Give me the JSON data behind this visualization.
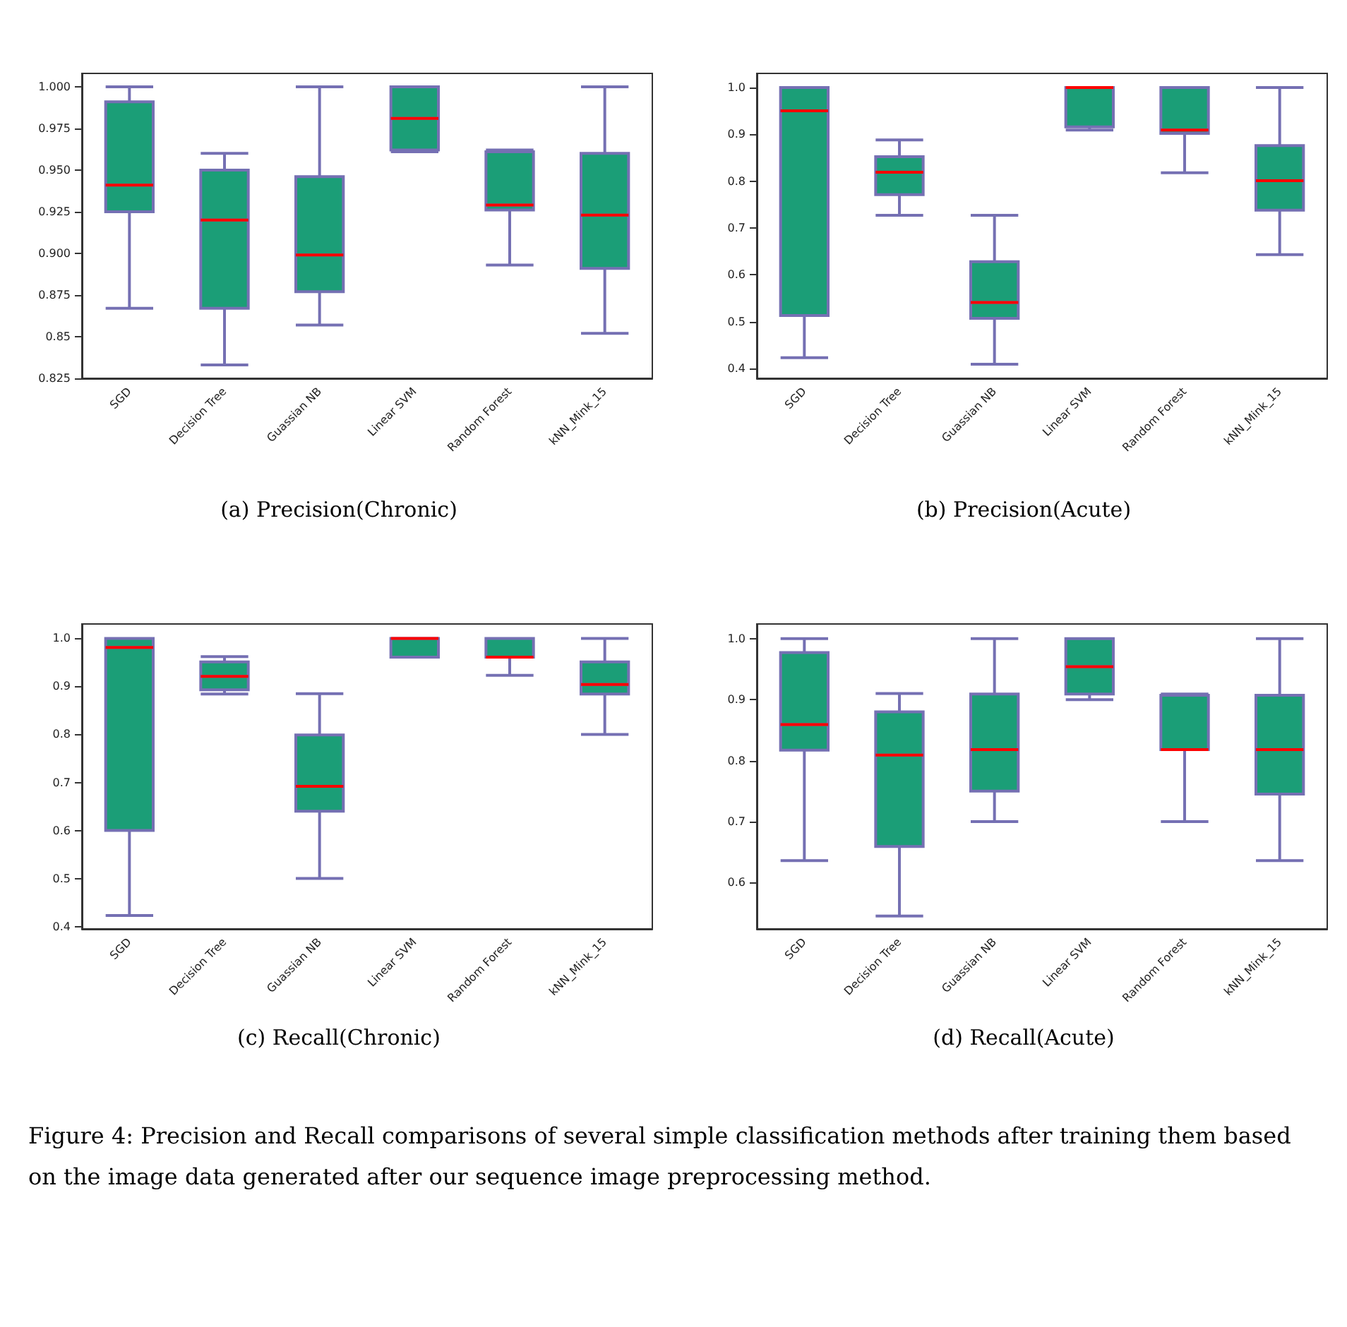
{
  "chart_data": [
    {
      "type": "box",
      "categories": [
        "SGD",
        "Decision Tree",
        "Guassian NB",
        "Linear SVM",
        "Random Forest",
        "kNN_Mink_15"
      ],
      "color": "#1b9e77",
      "ylim": [
        0.825,
        1.008
      ],
      "yticks": [
        0.825,
        0.85,
        {
          "value": 0.875,
          "label": "0.875"
        },
        {
          "value": 0.9,
          "label": "0.900"
        },
        0.925,
        {
          "value": 0.95,
          "label": "0.950"
        },
        0.975,
        {
          "value": 1.0,
          "label": "1.000"
        }
      ],
      "boxes": [
        {
          "low": 0.867,
          "q1": 0.925,
          "median": 0.941,
          "q3": 0.991,
          "high": 1.0
        },
        {
          "low": 0.833,
          "q1": 0.867,
          "median": 0.92,
          "q3": 0.95,
          "high": 0.96
        },
        {
          "low": 0.857,
          "q1": 0.877,
          "median": 0.899,
          "q3": 0.946,
          "high": 1.0
        },
        {
          "low": 0.961,
          "q1": 0.962,
          "median": 0.981,
          "q3": 1.0,
          "high": 1.0
        },
        {
          "low": 0.893,
          "q1": 0.926,
          "median": 0.929,
          "q3": 0.961,
          "high": 0.962
        },
        {
          "low": 0.852,
          "q1": 0.891,
          "median": 0.923,
          "q3": 0.96,
          "high": 1.0
        }
      ],
      "annotations": [
        "(a)  Precision(Chronic)"
      ]
    },
    {
      "type": "box",
      "categories": [
        "SGD",
        "Decision Tree",
        "Guassian NB",
        "Linear SVM",
        "Random Forest",
        "kNN_Mink_15"
      ],
      "color": "#1b9e77",
      "ylim": [
        0.379,
        1.03
      ],
      "yticks": [
        0.4,
        0.5,
        0.6,
        0.7,
        0.8,
        0.9,
        {
          "value": 1.0,
          "label": "1.0"
        }
      ],
      "boxes": [
        {
          "low": 0.423,
          "q1": 0.513,
          "median": 0.95,
          "q3": 1.0,
          "high": 1.0
        },
        {
          "low": 0.727,
          "q1": 0.771,
          "median": 0.819,
          "q3": 0.852,
          "high": 0.888
        },
        {
          "low": 0.409,
          "q1": 0.507,
          "median": 0.541,
          "q3": 0.628,
          "high": 0.727
        },
        {
          "low": 0.909,
          "q1": 0.916,
          "median": 1.0,
          "q3": 1.0,
          "high": 1.0
        },
        {
          "low": 0.818,
          "q1": 0.902,
          "median": 0.909,
          "q3": 1.0,
          "high": 1.0
        },
        {
          "low": 0.643,
          "q1": 0.738,
          "median": 0.801,
          "q3": 0.876,
          "high": 1.0
        }
      ],
      "annotations": [
        "(b) Precision(Acute)"
      ]
    },
    {
      "type": "box",
      "categories": [
        "SGD",
        "Decision Tree",
        "Guassian NB",
        "Linear SVM",
        "Random Forest",
        "kNN_Mink_15"
      ],
      "color": "#1b9e77",
      "ylim": [
        0.395,
        1.03
      ],
      "yticks": [
        0.4,
        0.5,
        0.6,
        0.7,
        0.8,
        0.9,
        {
          "value": 1.0,
          "label": "1.0"
        }
      ],
      "boxes": [
        {
          "low": 0.423,
          "q1": 0.6,
          "median": 0.981,
          "q3": 1.0,
          "high": 1.0
        },
        {
          "low": 0.884,
          "q1": 0.893,
          "median": 0.921,
          "q3": 0.951,
          "high": 0.962
        },
        {
          "low": 0.5,
          "q1": 0.64,
          "median": 0.692,
          "q3": 0.799,
          "high": 0.885
        },
        {
          "low": 0.961,
          "q1": 0.961,
          "median": 1.0,
          "q3": 1.0,
          "high": 1.0
        },
        {
          "low": 0.923,
          "q1": 0.961,
          "median": 0.961,
          "q3": 1.0,
          "high": 1.0
        },
        {
          "low": 0.8,
          "q1": 0.884,
          "median": 0.904,
          "q3": 0.951,
          "high": 1.0
        }
      ],
      "annotations": [
        "(c)  Recall(Chronic)"
      ]
    },
    {
      "type": "box",
      "categories": [
        "SGD",
        "Decision Tree",
        "Guassian NB",
        "Linear SVM",
        "Random Forest",
        "kNN_Mink_15"
      ],
      "color": "#1b9e77",
      "ylim": [
        0.524,
        1.024
      ],
      "yticks": [
        0.6,
        0.7,
        0.8,
        0.9,
        {
          "value": 1.0,
          "label": "1.0"
        }
      ],
      "boxes": [
        {
          "low": 0.636,
          "q1": 0.817,
          "median": 0.859,
          "q3": 0.977,
          "high": 1.0
        },
        {
          "low": 0.545,
          "q1": 0.659,
          "median": 0.809,
          "q3": 0.88,
          "high": 0.91
        },
        {
          "low": 0.7,
          "q1": 0.75,
          "median": 0.818,
          "q3": 0.909,
          "high": 1.0
        },
        {
          "low": 0.9,
          "q1": 0.909,
          "median": 0.954,
          "q3": 1.0,
          "high": 1.0
        },
        {
          "low": 0.7,
          "q1": 0.818,
          "median": 0.818,
          "q3": 0.907,
          "high": 0.909
        },
        {
          "low": 0.636,
          "q1": 0.745,
          "median": 0.818,
          "q3": 0.907,
          "high": 1.0
        }
      ],
      "annotations": [
        "(d) Recall(Acute)",
        "Figure 4: Precision and Recall comparisons of several simple classification methods after training them based on the image data generated after our sequence image preprocessing method."
      ]
    }
  ]
}
